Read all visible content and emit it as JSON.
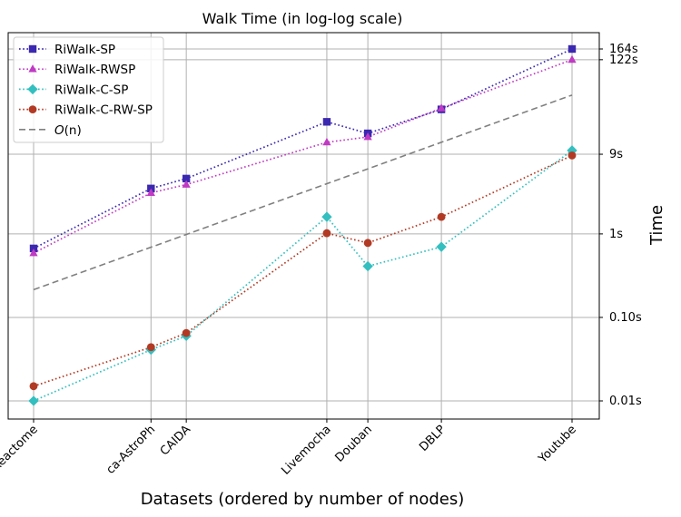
{
  "chart_data": {
    "type": "line",
    "title": "Walk Time (in log-log scale)",
    "xlabel": "Datasets (ordered by number of nodes)",
    "ylabel": "Time",
    "yscale": "log",
    "xscale": "log",
    "categories": [
      "Reactome",
      "ca-AstroPh",
      "CAIDA",
      "Livemocha",
      "Douban",
      "DBLP",
      "Youtube"
    ],
    "x_positions": [
      6000,
      18800,
      26500,
      104000,
      155000,
      317000,
      1130000
    ],
    "y_ticks": [
      {
        "value": 0.01,
        "label": "0.01s"
      },
      {
        "value": 0.1,
        "label": "0.10s"
      },
      {
        "value": 1,
        "label": "1s"
      },
      {
        "value": 9,
        "label": "9s"
      },
      {
        "value": 122,
        "label": "122s"
      },
      {
        "value": 164,
        "label": "164s"
      }
    ],
    "ylim": [
      0.0062,
      200
    ],
    "grid": true,
    "legend_position": "upper-left",
    "series": [
      {
        "name": "RiWalk-SP",
        "color": "#3b28b0",
        "marker": "square",
        "linestyle": "dotted",
        "values": [
          0.67,
          3.5,
          4.6,
          22,
          16,
          31,
          164
        ]
      },
      {
        "name": "RiWalk-RWSP",
        "color": "#c03ac4",
        "marker": "triangle",
        "linestyle": "dotted",
        "values": [
          0.59,
          3.1,
          3.9,
          12.5,
          14.5,
          32,
          122
        ]
      },
      {
        "name": "RiWalk-C-SP",
        "color": "#33bfbf",
        "marker": "diamond",
        "linestyle": "dotted",
        "values": [
          0.01,
          0.041,
          0.06,
          1.6,
          0.41,
          0.7,
          10
        ]
      },
      {
        "name": "RiWalk-C-RW-SP",
        "color": "#b23a24",
        "marker": "circle",
        "linestyle": "dotted",
        "values": [
          0.015,
          0.044,
          0.065,
          1.02,
          0.78,
          1.6,
          8.7
        ]
      },
      {
        "name": "O(n)",
        "color": "#808080",
        "marker": "none",
        "linestyle": "dashed",
        "values": [
          0.215,
          null,
          null,
          null,
          null,
          null,
          46
        ]
      }
    ]
  }
}
